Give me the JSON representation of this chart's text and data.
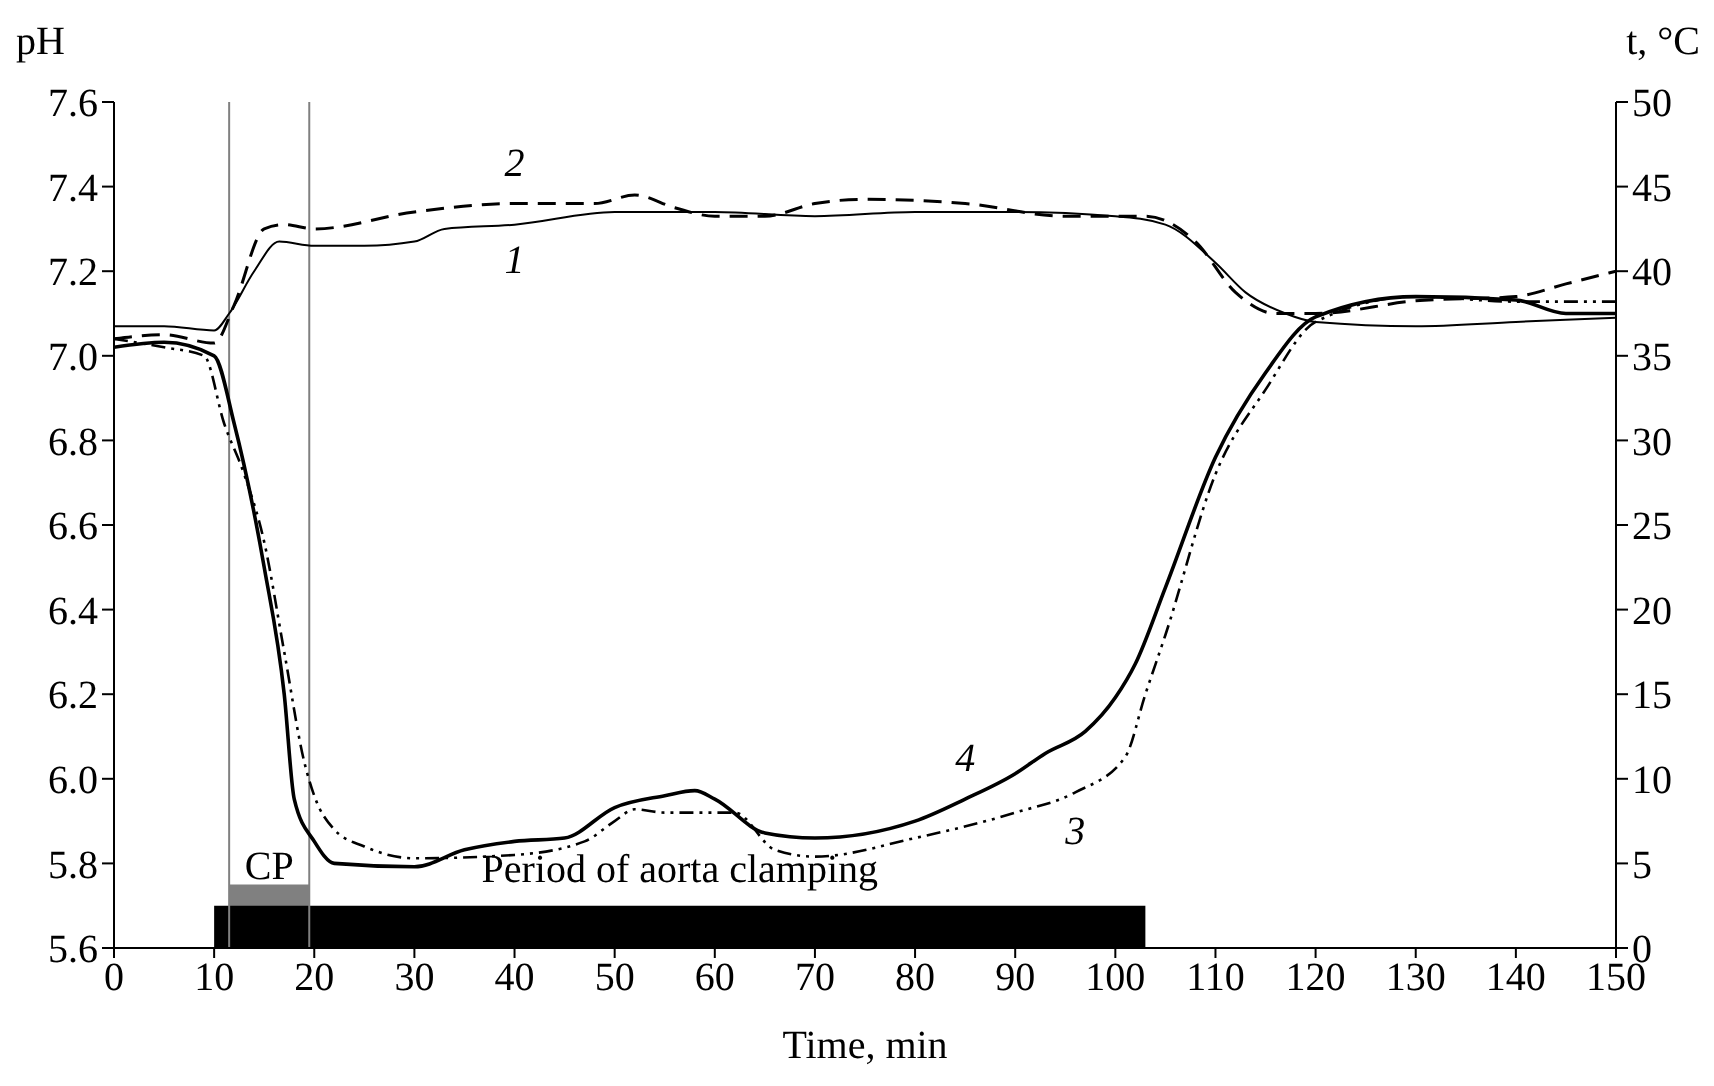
{
  "chart_data": {
    "type": "line",
    "xlabel": "Time, min",
    "ylabel": "pH",
    "y2label": "t, °C",
    "xlim": [
      0,
      150
    ],
    "xticks": [
      0,
      10,
      20,
      30,
      40,
      50,
      60,
      70,
      80,
      90,
      100,
      110,
      120,
      130,
      140,
      150
    ],
    "ylim": [
      5.6,
      7.6
    ],
    "yticks": [
      {
        "value": 5.6,
        "label": "5.6"
      },
      {
        "value": 5.8,
        "label": "5.8"
      },
      {
        "value": 6.0,
        "label": "6.0"
      },
      {
        "value": 6.2,
        "label": "6.2"
      },
      {
        "value": 6.4,
        "label": "6.4"
      },
      {
        "value": 6.6,
        "label": "6.6"
      },
      {
        "value": 6.8,
        "label": "6.8"
      },
      {
        "value": 7.0,
        "label": "7.0"
      },
      {
        "value": 7.2,
        "label": "7.2"
      },
      {
        "value": 7.4,
        "label": "7.4"
      },
      {
        "value": 7.6,
        "label": "7.6"
      }
    ],
    "y2lim": [
      0,
      50
    ],
    "y2ticks": [
      0,
      5,
      10,
      15,
      20,
      25,
      30,
      35,
      40,
      45,
      50
    ],
    "grid": false,
    "legend": false,
    "marker": "none",
    "series": [
      {
        "name": "1",
        "color": "#000000",
        "line_style": "solid",
        "x": [
          0,
          5,
          10,
          11.5,
          14,
          16.5,
          20,
          25,
          30,
          33,
          40,
          50,
          60,
          70,
          80,
          90,
          100,
          105,
          110,
          113,
          117,
          120,
          130,
          140,
          150
        ],
        "values": [
          7.07,
          7.07,
          7.06,
          7.1,
          7.2,
          7.27,
          7.26,
          7.26,
          7.27,
          7.3,
          7.31,
          7.34,
          7.34,
          7.33,
          7.34,
          7.34,
          7.33,
          7.31,
          7.22,
          7.15,
          7.1,
          7.08,
          7.07,
          7.08,
          7.09
        ]
      },
      {
        "name": "2",
        "color": "#000000",
        "line_style": "dashed",
        "x": [
          0,
          5,
          10,
          12,
          15,
          17,
          20,
          30,
          40,
          48,
          52,
          56,
          60,
          65,
          70,
          75,
          85,
          95,
          103,
          108,
          112,
          116,
          120,
          130,
          140,
          145,
          150
        ],
        "values": [
          7.04,
          7.05,
          7.03,
          7.12,
          7.3,
          7.31,
          7.3,
          7.34,
          7.36,
          7.36,
          7.38,
          7.35,
          7.33,
          7.33,
          7.36,
          7.37,
          7.36,
          7.33,
          7.33,
          7.27,
          7.15,
          7.1,
          7.1,
          7.13,
          7.14,
          7.17,
          7.2
        ]
      },
      {
        "name": "3",
        "color": "#000000",
        "line_style": "dotted",
        "axis": "y2",
        "x": [
          0,
          5,
          9,
          11,
          13,
          15,
          17,
          19,
          20,
          22,
          25,
          30,
          40,
          47,
          50,
          52,
          55,
          62,
          66,
          70,
          80,
          90,
          96,
          101,
          103,
          105,
          110,
          115,
          120,
          130,
          140,
          150
        ],
        "values": [
          36,
          35.5,
          35,
          31,
          28,
          24,
          17.5,
          11,
          9,
          7,
          6,
          5.3,
          5.5,
          6.3,
          7.5,
          8.2,
          8,
          8,
          5.8,
          5.4,
          6.5,
          8,
          9.2,
          11.3,
          15,
          18.5,
          28,
          33,
          37,
          38.5,
          38.2,
          38.2
        ]
      },
      {
        "name": "4",
        "color": "#000000",
        "line_style": "solid",
        "axis": "y2",
        "x": [
          0,
          5,
          10,
          12,
          15,
          17,
          18,
          20,
          22,
          30,
          35,
          40,
          45,
          50,
          55,
          58,
          60,
          65,
          70,
          80,
          85,
          90,
          93,
          97,
          100,
          102,
          105,
          110,
          115,
          120,
          130,
          140,
          145,
          150
        ],
        "values": [
          35.5,
          35.8,
          35,
          31,
          22.5,
          15,
          8.8,
          6.3,
          5,
          4.8,
          5.8,
          6.3,
          6.5,
          8.3,
          9,
          9.3,
          8.8,
          6.8,
          6.5,
          7.5,
          8.8,
          10.3,
          11.5,
          12.8,
          14.8,
          16.8,
          21.3,
          29,
          34,
          37.3,
          38.5,
          38.3,
          37.5,
          37.5
        ]
      }
    ],
    "ref_lines": [
      {
        "axis": "x",
        "value": 11.5,
        "label": null,
        "color": "#808080"
      },
      {
        "axis": "x",
        "value": 19.5,
        "label": null,
        "color": "#808080"
      }
    ],
    "bands": [
      {
        "axis": "x",
        "from": 10,
        "to": 103,
        "label": "Period of aorta clamping",
        "color": "#000000"
      },
      {
        "axis": "x",
        "from": 11.5,
        "to": 19.5,
        "label": "CP",
        "color": "#808080"
      }
    ]
  }
}
